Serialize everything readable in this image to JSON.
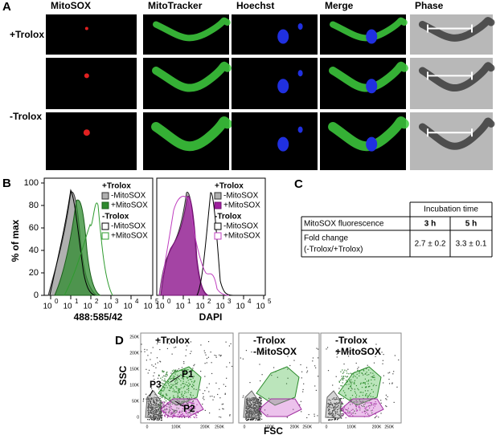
{
  "panel_a": {
    "letter": "A",
    "columns": [
      "MitoSOX",
      "MitoTracker",
      "Hoechst",
      "Merge",
      "Phase"
    ],
    "rows": [
      "+Trolox",
      "-Trolox"
    ]
  },
  "panel_b": {
    "letter": "B",
    "y_axis_label": "% of max",
    "yticks": [
      0,
      20,
      40,
      60,
      80,
      100
    ],
    "xtick_base": "10",
    "xtick_exponents": [
      "0",
      "1",
      "2",
      "3",
      "4",
      "5"
    ],
    "plots": [
      {
        "x_axis_label": "488:585/42",
        "legend": [
          {
            "group": "+Trolox",
            "entries": [
              "-MitoSOX",
              "+MitoSOX"
            ]
          },
          {
            "group": "-Trolox",
            "entries": [
              "-MitoSOX",
              "+MitoSOX"
            ]
          }
        ]
      },
      {
        "x_axis_label": "DAPI",
        "legend": [
          {
            "group": "+Trolox",
            "entries": [
              "-MitoSOX",
              "+MitoSOX"
            ]
          },
          {
            "group": "-Trolox",
            "entries": [
              "-MitoSOX",
              "+MitoSOX"
            ]
          }
        ]
      }
    ]
  },
  "panel_c": {
    "letter": "C",
    "header": "Incubation time",
    "row_header": "MitoSOX fluorescence",
    "columns": [
      "3 h",
      "5 h"
    ],
    "row_label_lines": [
      "Fold change",
      "(-Trolox/+Trolox)"
    ],
    "values": [
      "2.7 ± 0.2",
      "3.3 ± 0.1"
    ]
  },
  "panel_d": {
    "letter": "D",
    "y_axis_label": "SSC",
    "x_axis_label": "FSC",
    "yticks": [
      "250K",
      "200K",
      "150K",
      "100K",
      "50K",
      "0"
    ],
    "xticks": [
      "0",
      "100K",
      "200K",
      "250K"
    ],
    "plots": [
      {
        "title_lines": [
          "+Trolox"
        ],
        "gates": [
          "P1",
          "P2",
          "P3"
        ]
      },
      {
        "title_lines": [
          "-Trolox",
          "-MitoSOX"
        ]
      },
      {
        "title_lines": [
          "-Trolox",
          "+MitoSOX"
        ]
      }
    ]
  }
}
